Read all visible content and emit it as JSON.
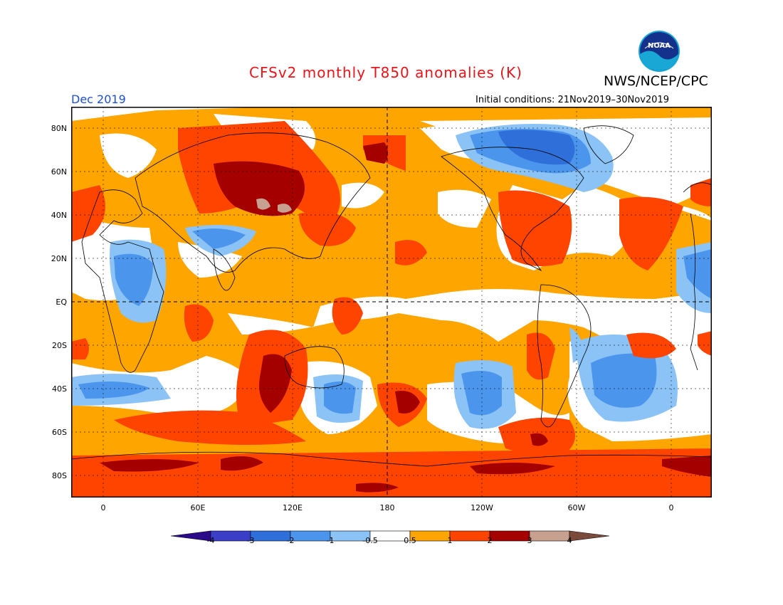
{
  "header": {
    "title": "CFSv2 monthly T850 anomalies (K)",
    "org": "NWS/NCEP/CPC",
    "month": "Dec 2019",
    "initial_conditions": "Initial conditions: 21Nov2019–30Nov2019",
    "logo_text": "NOAA"
  },
  "axes": {
    "lat_labels": [
      "80N",
      "60N",
      "40N",
      "20N",
      "EQ",
      "20S",
      "40S",
      "60S",
      "80S"
    ],
    "lon_labels": [
      "0",
      "60E",
      "120E",
      "180",
      "120W",
      "60W",
      "0"
    ]
  },
  "legend": {
    "ticks": [
      "-4",
      "-3",
      "-2",
      "-1",
      "-0.5",
      "0.5",
      "1",
      "2",
      "3",
      "4"
    ],
    "colors": [
      "#2b0a8a",
      "#3b3fc8",
      "#2f6fd9",
      "#4b96ec",
      "#8cc3f6",
      "#ffffff",
      "#ffa500",
      "#ff4400",
      "#a50000",
      "#c8a090",
      "#7a4a3a"
    ]
  },
  "colors": {
    "title": "#e8141a",
    "month": "#1d4fd8",
    "ocean_bg": "#ffffff"
  }
}
